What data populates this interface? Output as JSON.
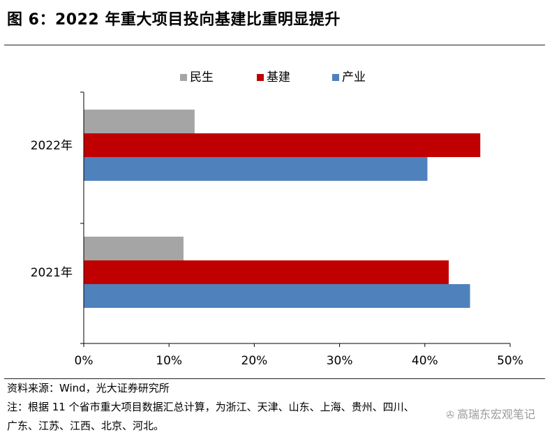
{
  "figure_title": "图 6：2022 年重大项目投向基建比重明显提升",
  "chart_data": {
    "type": "bar",
    "orientation": "horizontal",
    "categories": [
      "2022年",
      "2021年"
    ],
    "series": [
      {
        "name": "民生",
        "color": "#A5A5A5",
        "values": [
          13,
          11.7
        ]
      },
      {
        "name": "基建",
        "color": "#C00000",
        "values": [
          46.5,
          42.8
        ]
      },
      {
        "name": "产业",
        "color": "#4F81BD",
        "values": [
          40.3,
          45.3
        ]
      }
    ],
    "xlim": [
      0,
      50
    ],
    "xticks": [
      "0%",
      "10%",
      "20%",
      "30%",
      "40%",
      "50%"
    ],
    "legend_position": "top",
    "grid": false
  },
  "source_text": "资料来源：Wind，光大证券研究所",
  "note_line1": "注：根据 11 个省市重大项目数据汇总计算，为浙江、天津、山东、上海、贵州、四川、",
  "note_line2": "广东、江苏、江西、北京、河北。",
  "watermark": "高瑞东宏观笔记"
}
